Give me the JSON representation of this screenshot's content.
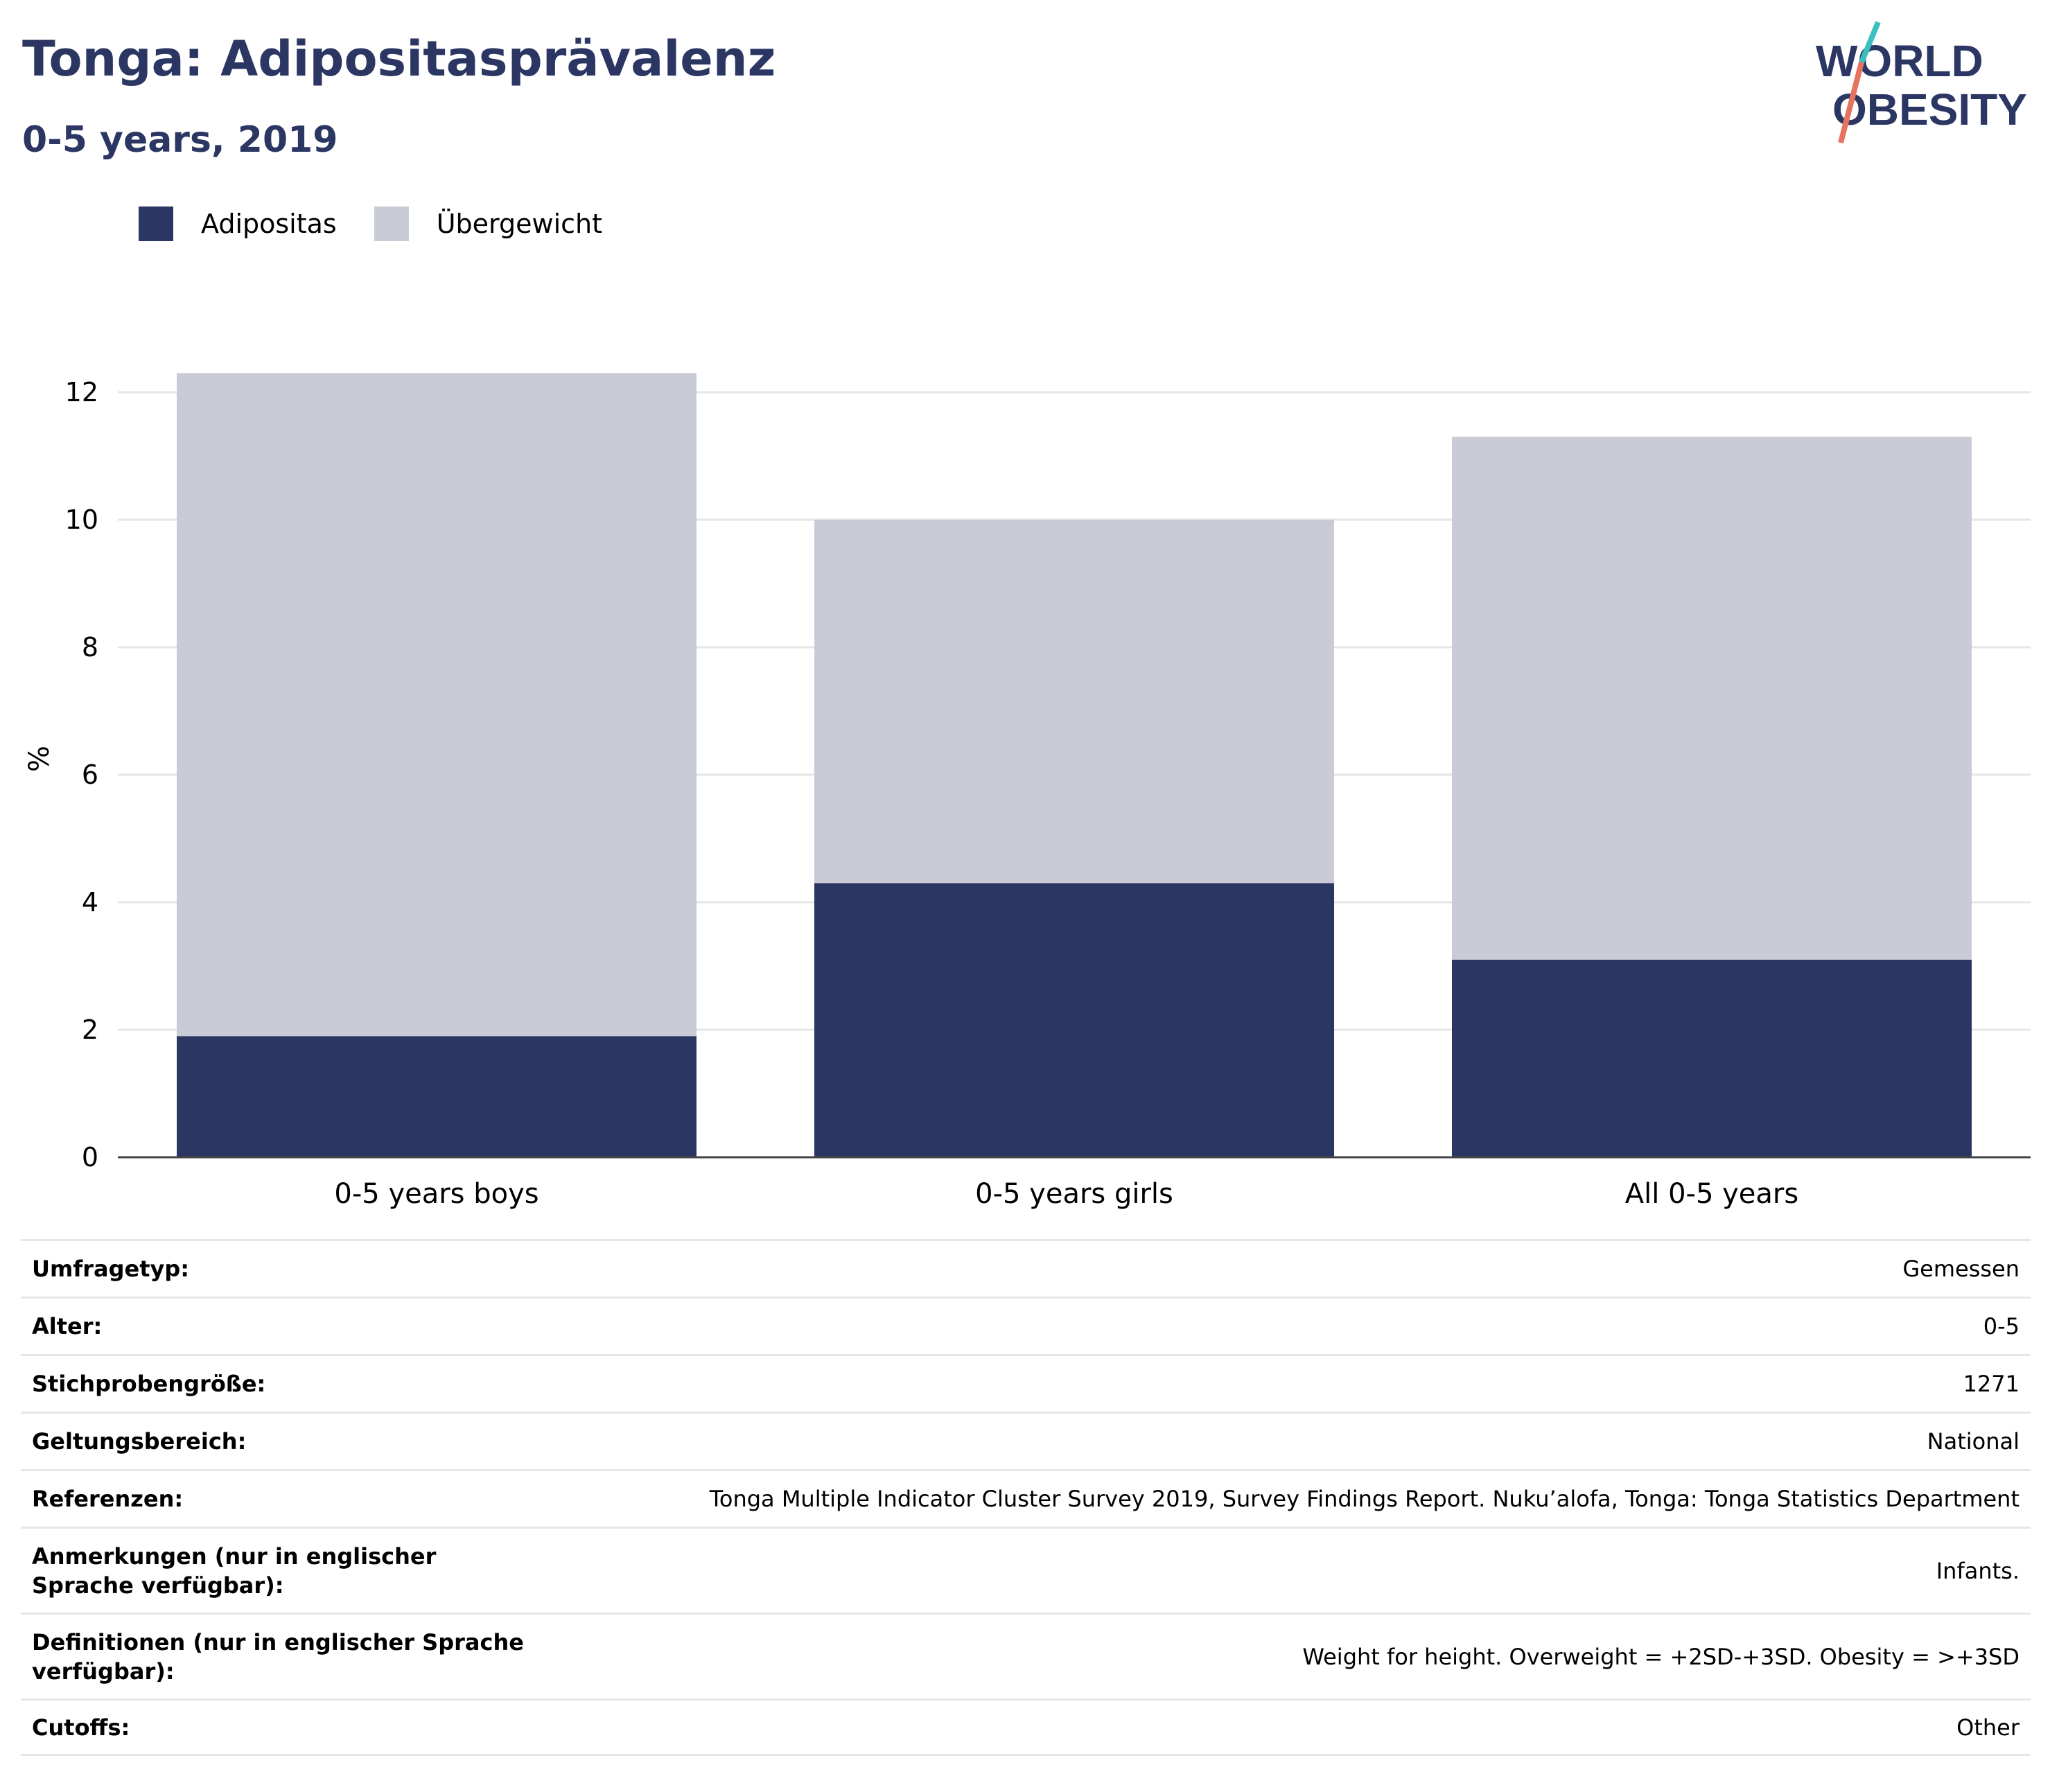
{
  "header": {
    "title": "Tonga: Adipositasprävalenz",
    "subtitle": "0-5 years, 2019"
  },
  "logo": {
    "line1": "WORLD",
    "line2": "OBESITY"
  },
  "colors": {
    "obesity": "#2b3663",
    "overweight": "#c9cbd6",
    "text": "#2b3663"
  },
  "chart_data": {
    "type": "bar",
    "stacked": true,
    "categories": [
      "0-5 years boys",
      "0-5 years girls",
      "All 0-5 years"
    ],
    "series": [
      {
        "name": "Adipositas",
        "values": [
          1.9,
          4.3,
          3.1
        ]
      },
      {
        "name": "Übergewicht",
        "values": [
          10.4,
          5.7,
          8.2
        ]
      }
    ],
    "totals": [
      12.3,
      10.0,
      11.3
    ],
    "ylabel": "%",
    "xlabel": "",
    "ylim": [
      0,
      12.5
    ],
    "yticks": [
      0,
      2,
      4,
      6,
      8,
      10,
      12
    ],
    "grid": true,
    "legend": "top-left"
  },
  "details": [
    {
      "label": "Umfragetyp:",
      "value": "Gemessen"
    },
    {
      "label": "Alter:",
      "value": "0-5"
    },
    {
      "label": "Stichprobengröße:",
      "value": "1271"
    },
    {
      "label": "Geltungsbereich:",
      "value": "National"
    },
    {
      "label": "Referenzen:",
      "value": "Tonga Multiple Indicator Cluster Survey 2019, Survey Findings Report. Nuku’alofa, Tonga: Tonga Statistics Department"
    },
    {
      "label": "Anmerkungen (nur in englischer Sprache verfügbar):",
      "value": "Infants."
    },
    {
      "label": "Definitionen (nur in englischer Sprache verfügbar):",
      "value": "Weight for height. Overweight = +2SD-+3SD. Obesity = >+3SD"
    },
    {
      "label": "Cutoffs:",
      "value": "Other"
    }
  ]
}
